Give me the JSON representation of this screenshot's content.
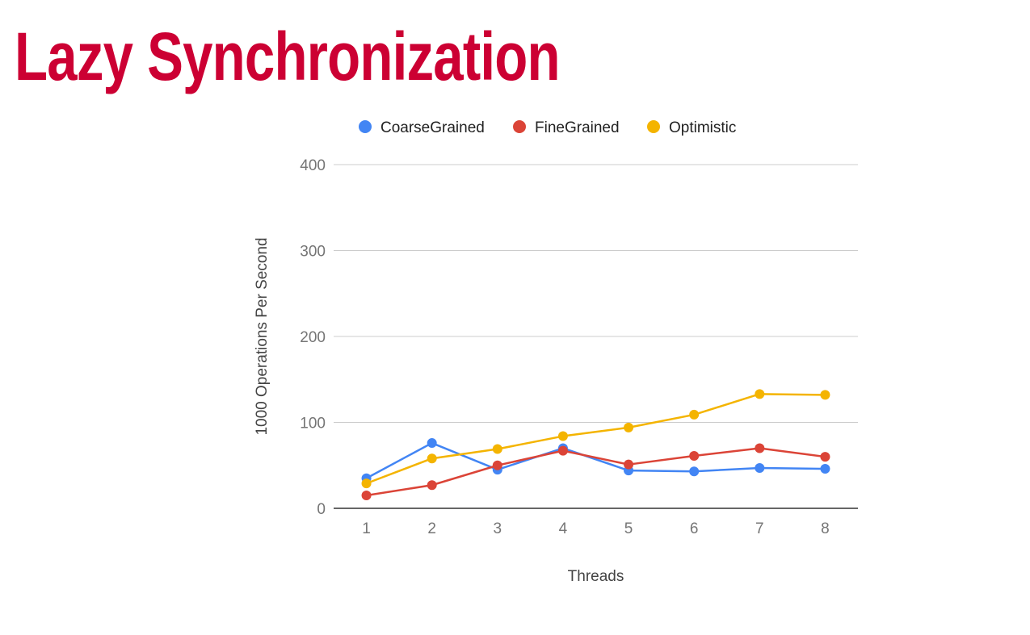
{
  "slide": {
    "title": "Lazy Synchronization",
    "title_color": "#cc0033"
  },
  "chart_data": {
    "type": "line",
    "title": "",
    "xlabel": "Threads",
    "ylabel": "1000 Operations Per Second",
    "categories": [
      "1",
      "2",
      "3",
      "4",
      "5",
      "6",
      "7",
      "8"
    ],
    "ylim": [
      0,
      400
    ],
    "yticks": [
      0,
      100,
      200,
      300,
      400
    ],
    "grid": true,
    "legend_position": "top",
    "series": [
      {
        "name": "CoarseGrained",
        "color": "#4285f4",
        "values": [
          35,
          76,
          45,
          70,
          44,
          43,
          47,
          46
        ]
      },
      {
        "name": "FineGrained",
        "color": "#db4437",
        "values": [
          15,
          27,
          50,
          67,
          51,
          61,
          70,
          60
        ]
      },
      {
        "name": "Optimistic",
        "color": "#f4b400",
        "values": [
          29,
          58,
          69,
          84,
          94,
          109,
          133,
          132
        ]
      }
    ]
  }
}
